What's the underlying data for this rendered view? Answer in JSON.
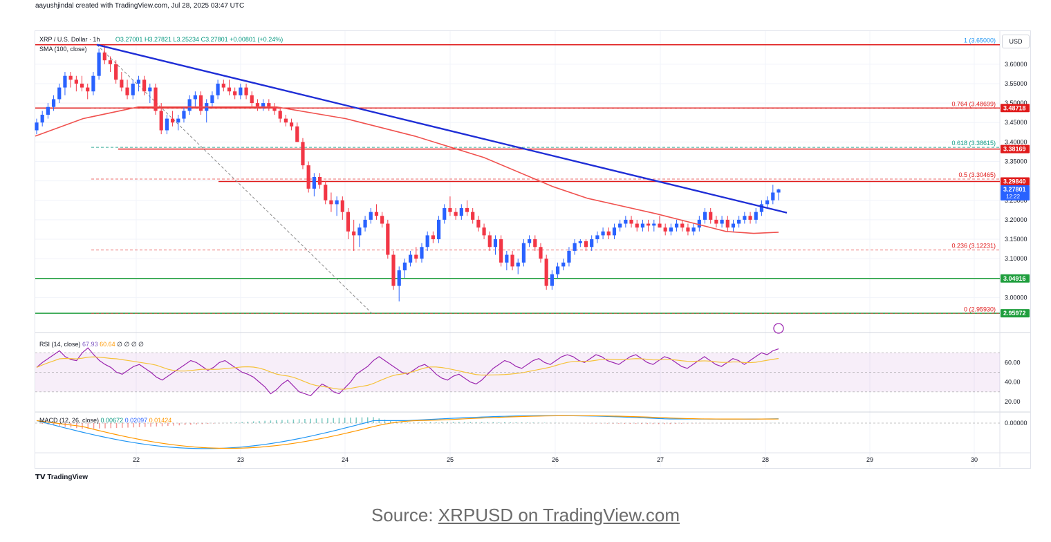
{
  "attribution": "aayushjindal created with TradingView.com, Jul 28, 2025 03:47 UTC",
  "legend": {
    "symbol": "XRP / U.S. Dollar · 1h",
    "open": "O3.27001",
    "high": "H3.27821",
    "low": "L3.25234",
    "close": "C3.27801",
    "change": "+0.00801 (+0.24%)",
    "sma": "SMA (100, close)",
    "rsi_label": "RSI (14, close)",
    "rsi_value": "67.93",
    "rsi_ma": "60.64",
    "rsi_extra": "∅ ∅ ∅ ∅",
    "macd_label": "MACD (12, 26, close)",
    "macd_v1": "0.00672",
    "macd_v2": "0.02097",
    "macd_v3": "0.01424"
  },
  "currency_button": "USD",
  "branding": "TradingView",
  "source": {
    "prefix": "Source: ",
    "link": "XRPUSD on TradingView.com"
  },
  "colors": {
    "up": "#2962ff",
    "down": "#f23645",
    "trendline": "#1f2ed6",
    "sma": "#f0524f",
    "support": "#1f9e3d",
    "resistance": "#e01b1b",
    "rsi": "#9c27b0",
    "rsi_ma": "#f5c23a",
    "macd": "#2196f3",
    "signal": "#ff9800"
  },
  "chart_data": {
    "type": "candlestick",
    "x_ticks": [
      "22",
      "23",
      "24",
      "25",
      "26",
      "27",
      "28",
      "29",
      "30"
    ],
    "y_ticks": [
      "3.60000",
      "3.55000",
      "3.50000",
      "3.45000",
      "3.40000",
      "3.35000",
      "3.30000",
      "3.25000",
      "3.20000",
      "3.15000",
      "3.10000",
      "3.05000",
      "3.00000"
    ],
    "ylim": [
      2.935,
      3.685
    ],
    "fib_levels": [
      {
        "label": "1 (3.65000)",
        "value": 3.65
      },
      {
        "label": "0.764 (3.48699)",
        "value": 3.48699
      },
      {
        "label": "0.618 (3.38615)",
        "value": 3.38615
      },
      {
        "label": "0.5 (3.30465)",
        "value": 3.30465
      },
      {
        "label": "0.236 (3.12231)",
        "value": 3.12231
      },
      {
        "label": "0 (2.95930)",
        "value": 2.9593
      }
    ],
    "price_labels": [
      {
        "label": "3.48718",
        "value": 3.48718,
        "kind": "resistance"
      },
      {
        "label": "3.38169",
        "value": 3.38169,
        "kind": "resistance"
      },
      {
        "label": "3.29840",
        "value": 3.2984,
        "kind": "resistance"
      },
      {
        "label": "3.27801",
        "value": 3.27801,
        "kind": "current",
        "sub": "12:22"
      },
      {
        "label": "3.04916",
        "value": 3.04916,
        "kind": "support"
      },
      {
        "label": "2.95972",
        "value": 2.95972,
        "kind": "support"
      }
    ],
    "rsi_ticks": [
      "60.00",
      "40.00",
      "20.00"
    ],
    "macd_ticks": [
      "0.00000"
    ],
    "candles": [
      [
        3.43,
        3.46,
        3.42,
        3.45
      ],
      [
        3.45,
        3.48,
        3.44,
        3.47
      ],
      [
        3.47,
        3.5,
        3.46,
        3.49
      ],
      [
        3.49,
        3.52,
        3.48,
        3.51
      ],
      [
        3.51,
        3.55,
        3.5,
        3.54
      ],
      [
        3.54,
        3.58,
        3.52,
        3.57
      ],
      [
        3.57,
        3.58,
        3.54,
        3.56
      ],
      [
        3.56,
        3.57,
        3.53,
        3.55
      ],
      [
        3.55,
        3.57,
        3.53,
        3.54
      ],
      [
        3.54,
        3.55,
        3.51,
        3.53
      ],
      [
        3.53,
        3.58,
        3.52,
        3.57
      ],
      [
        3.57,
        3.64,
        3.56,
        3.63
      ],
      [
        3.63,
        3.65,
        3.6,
        3.61
      ],
      [
        3.61,
        3.62,
        3.58,
        3.6
      ],
      [
        3.6,
        3.61,
        3.55,
        3.56
      ],
      [
        3.56,
        3.58,
        3.53,
        3.54
      ],
      [
        3.54,
        3.56,
        3.51,
        3.52
      ],
      [
        3.52,
        3.56,
        3.51,
        3.55
      ],
      [
        3.55,
        3.57,
        3.53,
        3.56
      ],
      [
        3.56,
        3.57,
        3.52,
        3.53
      ],
      [
        3.53,
        3.55,
        3.5,
        3.54
      ],
      [
        3.54,
        3.55,
        3.47,
        3.48
      ],
      [
        3.48,
        3.5,
        3.42,
        3.43
      ],
      [
        3.43,
        3.47,
        3.42,
        3.46
      ],
      [
        3.46,
        3.48,
        3.44,
        3.45
      ],
      [
        3.45,
        3.47,
        3.43,
        3.46
      ],
      [
        3.46,
        3.49,
        3.45,
        3.48
      ],
      [
        3.48,
        3.52,
        3.47,
        3.51
      ],
      [
        3.51,
        3.53,
        3.49,
        3.52
      ],
      [
        3.52,
        3.53,
        3.47,
        3.48
      ],
      [
        3.48,
        3.51,
        3.45,
        3.5
      ],
      [
        3.5,
        3.53,
        3.49,
        3.52
      ],
      [
        3.52,
        3.56,
        3.51,
        3.55
      ],
      [
        3.55,
        3.56,
        3.53,
        3.54
      ],
      [
        3.54,
        3.56,
        3.52,
        3.53
      ],
      [
        3.53,
        3.54,
        3.51,
        3.52
      ],
      [
        3.52,
        3.55,
        3.51,
        3.54
      ],
      [
        3.54,
        3.55,
        3.51,
        3.52
      ],
      [
        3.52,
        3.53,
        3.49,
        3.5
      ],
      [
        3.5,
        3.51,
        3.48,
        3.49
      ],
      [
        3.49,
        3.51,
        3.48,
        3.5
      ],
      [
        3.5,
        3.51,
        3.48,
        3.49
      ],
      [
        3.49,
        3.5,
        3.47,
        3.48
      ],
      [
        3.48,
        3.49,
        3.45,
        3.46
      ],
      [
        3.46,
        3.47,
        3.44,
        3.45
      ],
      [
        3.45,
        3.46,
        3.43,
        3.44
      ],
      [
        3.44,
        3.45,
        3.4,
        3.4
      ],
      [
        3.4,
        3.41,
        3.33,
        3.34
      ],
      [
        3.34,
        3.35,
        3.27,
        3.28
      ],
      [
        3.28,
        3.32,
        3.26,
        3.31
      ],
      [
        3.31,
        3.32,
        3.28,
        3.29
      ],
      [
        3.29,
        3.3,
        3.24,
        3.25
      ],
      [
        3.25,
        3.27,
        3.22,
        3.24
      ],
      [
        3.24,
        3.26,
        3.21,
        3.25
      ],
      [
        3.25,
        3.26,
        3.2,
        3.22
      ],
      [
        3.22,
        3.23,
        3.15,
        3.17
      ],
      [
        3.17,
        3.2,
        3.12,
        3.16
      ],
      [
        3.16,
        3.19,
        3.13,
        3.18
      ],
      [
        3.18,
        3.21,
        3.17,
        3.2
      ],
      [
        3.2,
        3.23,
        3.19,
        3.22
      ],
      [
        3.22,
        3.24,
        3.2,
        3.21
      ],
      [
        3.21,
        3.22,
        3.18,
        3.19
      ],
      [
        3.19,
        3.2,
        3.1,
        3.11
      ],
      [
        3.11,
        3.12,
        3.02,
        3.03
      ],
      [
        3.03,
        3.08,
        2.99,
        3.07
      ],
      [
        3.07,
        3.1,
        3.05,
        3.09
      ],
      [
        3.09,
        3.12,
        3.08,
        3.11
      ],
      [
        3.11,
        3.13,
        3.09,
        3.1
      ],
      [
        3.1,
        3.14,
        3.09,
        3.13
      ],
      [
        3.13,
        3.17,
        3.12,
        3.16
      ],
      [
        3.16,
        3.17,
        3.14,
        3.15
      ],
      [
        3.15,
        3.21,
        3.14,
        3.2
      ],
      [
        3.2,
        3.24,
        3.19,
        3.23
      ],
      [
        3.23,
        3.26,
        3.21,
        3.22
      ],
      [
        3.22,
        3.23,
        3.2,
        3.21
      ],
      [
        3.21,
        3.24,
        3.2,
        3.23
      ],
      [
        3.23,
        3.25,
        3.21,
        3.22
      ],
      [
        3.22,
        3.23,
        3.19,
        3.2
      ],
      [
        3.2,
        3.21,
        3.17,
        3.18
      ],
      [
        3.18,
        3.19,
        3.15,
        3.16
      ],
      [
        3.16,
        3.17,
        3.12,
        3.13
      ],
      [
        3.13,
        3.16,
        3.11,
        3.15
      ],
      [
        3.15,
        3.16,
        3.08,
        3.09
      ],
      [
        3.09,
        3.12,
        3.07,
        3.11
      ],
      [
        3.11,
        3.12,
        3.07,
        3.08
      ],
      [
        3.08,
        3.1,
        3.06,
        3.09
      ],
      [
        3.09,
        3.15,
        3.08,
        3.14
      ],
      [
        3.14,
        3.16,
        3.13,
        3.15
      ],
      [
        3.15,
        3.16,
        3.12,
        3.13
      ],
      [
        3.13,
        3.14,
        3.09,
        3.1
      ],
      [
        3.1,
        3.11,
        3.02,
        3.03
      ],
      [
        3.03,
        3.07,
        3.02,
        3.06
      ],
      [
        3.06,
        3.09,
        3.05,
        3.08
      ],
      [
        3.08,
        3.1,
        3.07,
        3.09
      ],
      [
        3.09,
        3.13,
        3.08,
        3.12
      ],
      [
        3.12,
        3.15,
        3.11,
        3.14
      ],
      [
        3.14,
        3.15,
        3.13,
        3.145
      ],
      [
        3.145,
        3.15,
        3.12,
        3.13
      ],
      [
        3.13,
        3.16,
        3.12,
        3.15
      ],
      [
        3.15,
        3.17,
        3.14,
        3.16
      ],
      [
        3.16,
        3.18,
        3.15,
        3.17
      ],
      [
        3.17,
        3.18,
        3.15,
        3.16
      ],
      [
        3.16,
        3.19,
        3.15,
        3.18
      ],
      [
        3.18,
        3.2,
        3.17,
        3.19
      ],
      [
        3.19,
        3.21,
        3.18,
        3.2
      ],
      [
        3.2,
        3.21,
        3.18,
        3.19
      ],
      [
        3.19,
        3.2,
        3.17,
        3.18
      ],
      [
        3.18,
        3.2,
        3.17,
        3.19
      ],
      [
        3.19,
        3.2,
        3.17,
        3.185
      ],
      [
        3.185,
        3.2,
        3.17,
        3.19
      ],
      [
        3.19,
        3.21,
        3.18,
        3.18
      ],
      [
        3.18,
        3.19,
        3.16,
        3.17
      ],
      [
        3.17,
        3.19,
        3.16,
        3.18
      ],
      [
        3.18,
        3.2,
        3.17,
        3.19
      ],
      [
        3.19,
        3.2,
        3.17,
        3.18
      ],
      [
        3.18,
        3.19,
        3.16,
        3.17
      ],
      [
        3.17,
        3.19,
        3.16,
        3.18
      ],
      [
        3.18,
        3.21,
        3.17,
        3.2
      ],
      [
        3.2,
        3.23,
        3.19,
        3.22
      ],
      [
        3.22,
        3.23,
        3.19,
        3.2
      ],
      [
        3.2,
        3.21,
        3.18,
        3.19
      ],
      [
        3.19,
        3.21,
        3.18,
        3.2
      ],
      [
        3.2,
        3.21,
        3.17,
        3.18
      ],
      [
        3.18,
        3.2,
        3.17,
        3.19
      ],
      [
        3.19,
        3.21,
        3.18,
        3.2
      ],
      [
        3.2,
        3.22,
        3.19,
        3.21
      ],
      [
        3.21,
        3.22,
        3.19,
        3.2
      ],
      [
        3.2,
        3.23,
        3.19,
        3.22
      ],
      [
        3.22,
        3.25,
        3.21,
        3.24
      ],
      [
        3.24,
        3.26,
        3.23,
        3.25
      ],
      [
        3.25,
        3.29,
        3.24,
        3.27
      ],
      [
        3.27,
        3.28,
        3.25,
        3.278
      ]
    ]
  }
}
